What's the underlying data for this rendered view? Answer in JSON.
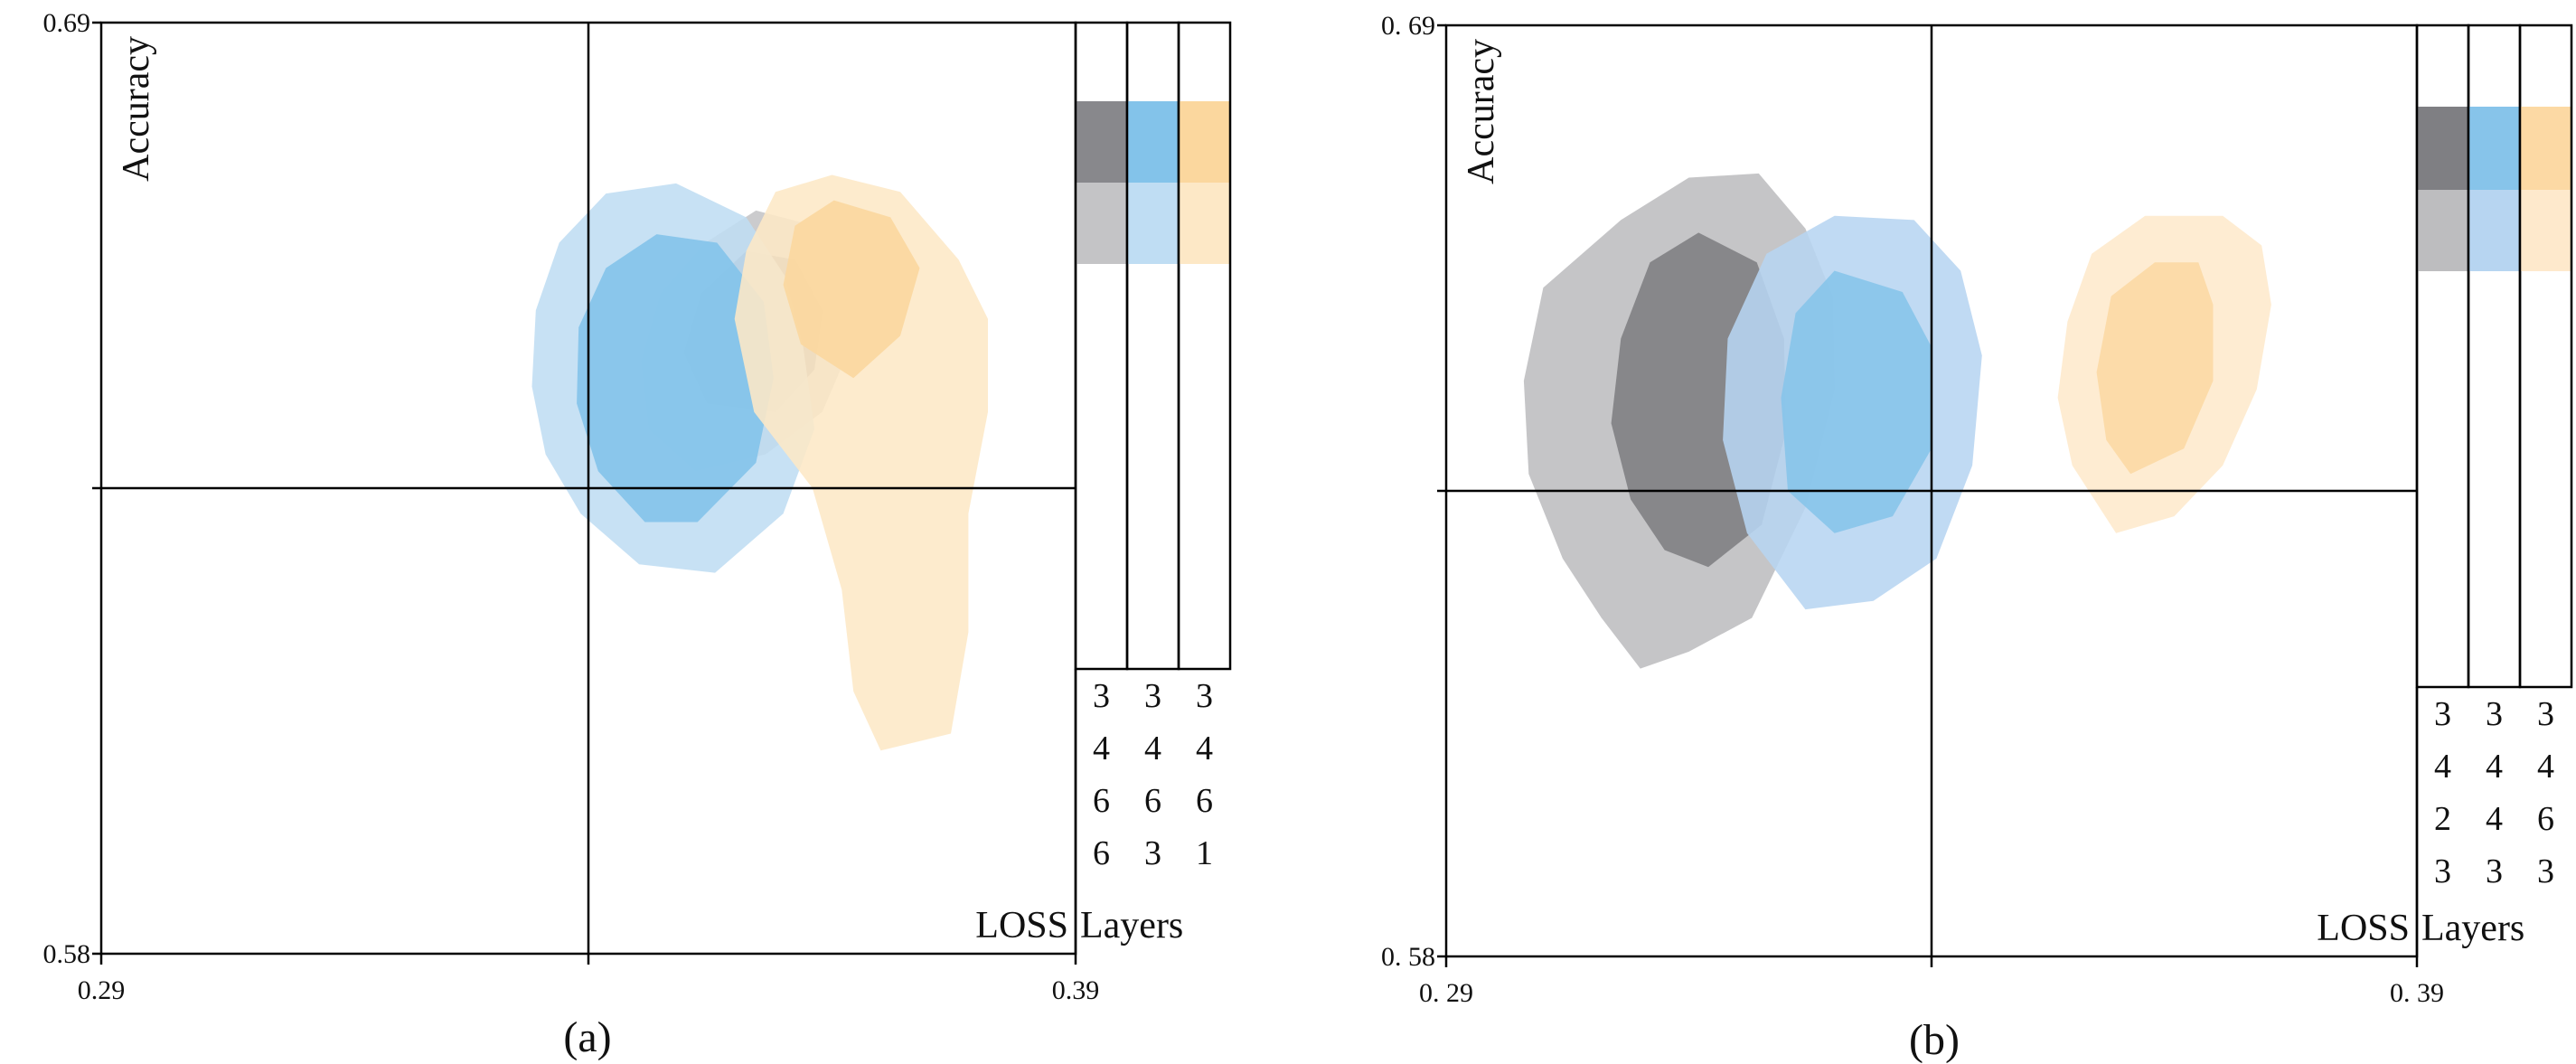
{
  "chart_data": [
    {
      "panel": "a",
      "caption": "(a)",
      "type": "contour",
      "xlabel": "LOSS",
      "ylabel": "Accuracy",
      "xlim": [
        0.29,
        0.39
      ],
      "ylim": [
        0.58,
        0.69
      ],
      "x_tick_labels": [
        "0.29",
        "0.39"
      ],
      "y_tick_labels": [
        "0.58",
        "0.69"
      ],
      "legend_title": "Layers",
      "series": [
        {
          "name": "3466",
          "layers": [
            "3",
            "4",
            "6",
            "6"
          ],
          "dark": "#88888c",
          "light": "#c4c4c6",
          "outer": [
            [
              0.3582,
              0.639
            ],
            [
              0.364,
              0.644
            ],
            [
              0.367,
              0.652
            ],
            [
              0.3668,
              0.66
            ],
            [
              0.3632,
              0.666
            ],
            [
              0.3572,
              0.6678
            ],
            [
              0.352,
              0.664
            ],
            [
              0.3474,
              0.658
            ],
            [
              0.3454,
              0.65
            ],
            [
              0.3462,
              0.642
            ],
            [
              0.351,
              0.637
            ]
          ],
          "inner": [
            [
              0.3592,
              0.644
            ],
            [
              0.3632,
              0.649
            ],
            [
              0.364,
              0.656
            ],
            [
              0.3612,
              0.662
            ],
            [
              0.3562,
              0.663
            ],
            [
              0.3516,
              0.658
            ],
            [
              0.3498,
              0.651
            ],
            [
              0.3522,
              0.645
            ]
          ]
        },
        {
          "name": "3463",
          "layers": [
            "3",
            "4",
            "6",
            "3"
          ],
          "dark": "#83c3ea",
          "light": "#bfddf3",
          "outer": [
            [
              0.353,
              0.625
            ],
            [
              0.36,
              0.632
            ],
            [
              0.3632,
              0.642
            ],
            [
              0.362,
              0.652
            ],
            [
              0.3602,
              0.66
            ],
            [
              0.3562,
              0.667
            ],
            [
              0.349,
              0.671
            ],
            [
              0.3418,
              0.6698
            ],
            [
              0.337,
              0.664
            ],
            [
              0.3346,
              0.656
            ],
            [
              0.3342,
              0.647
            ],
            [
              0.3356,
              0.639
            ],
            [
              0.3392,
              0.632
            ],
            [
              0.3452,
              0.626
            ]
          ],
          "inner": [
            [
              0.3512,
              0.631
            ],
            [
              0.3572,
              0.638
            ],
            [
              0.359,
              0.648
            ],
            [
              0.358,
              0.657
            ],
            [
              0.3532,
              0.664
            ],
            [
              0.347,
              0.665
            ],
            [
              0.3418,
              0.661
            ],
            [
              0.339,
              0.654
            ],
            [
              0.3388,
              0.645
            ],
            [
              0.341,
              0.637
            ],
            [
              0.3458,
              0.631
            ]
          ]
        },
        {
          "name": "3461",
          "layers": [
            "3",
            "4",
            "6",
            "1"
          ],
          "dark": "#fbd79e",
          "light": "#fde8c6",
          "outer": [
            [
              0.37,
              0.604
            ],
            [
              0.3772,
              0.606
            ],
            [
              0.379,
              0.618
            ],
            [
              0.379,
              0.632
            ],
            [
              0.381,
              0.644
            ],
            [
              0.381,
              0.655
            ],
            [
              0.378,
              0.662
            ],
            [
              0.372,
              0.67
            ],
            [
              0.365,
              0.672
            ],
            [
              0.3592,
              0.67
            ],
            [
              0.3562,
              0.663
            ],
            [
              0.355,
              0.655
            ],
            [
              0.357,
              0.644
            ],
            [
              0.363,
              0.635
            ],
            [
              0.366,
              0.623
            ],
            [
              0.3672,
              0.611
            ]
          ],
          "inner": [
            [
              0.3672,
              0.648
            ],
            [
              0.372,
              0.653
            ],
            [
              0.374,
              0.661
            ],
            [
              0.371,
              0.667
            ],
            [
              0.3652,
              0.669
            ],
            [
              0.3612,
              0.666
            ],
            [
              0.36,
              0.659
            ],
            [
              0.3618,
              0.652
            ]
          ]
        }
      ]
    },
    {
      "panel": "b",
      "caption": "(b)",
      "type": "contour",
      "xlabel": "LOSS",
      "ylabel": "Accuracy",
      "xlim": [
        0.29,
        0.39
      ],
      "ylim": [
        0.58,
        0.69
      ],
      "x_tick_labels": [
        "0. 29",
        "0. 39"
      ],
      "y_tick_labels": [
        "0. 58",
        "0. 69"
      ],
      "legend_title": "Layers",
      "series": [
        {
          "name": "3423",
          "layers": [
            "3",
            "4",
            "2",
            "3"
          ],
          "dark": "#7f7f83",
          "light": "#bdbdbf",
          "outer": [
            [
              0.31,
              0.614
            ],
            [
              0.315,
              0.616
            ],
            [
              0.3215,
              0.62
            ],
            [
              0.327,
              0.633
            ],
            [
              0.33,
              0.647
            ],
            [
              0.3298,
              0.658
            ],
            [
              0.327,
              0.666
            ],
            [
              0.3222,
              0.6725
            ],
            [
              0.315,
              0.672
            ],
            [
              0.308,
              0.667
            ],
            [
              0.3,
              0.659
            ],
            [
              0.298,
              0.648
            ],
            [
              0.2985,
              0.637
            ],
            [
              0.302,
              0.627
            ],
            [
              0.306,
              0.62
            ]
          ],
          "inner": [
            [
              0.317,
              0.626
            ],
            [
              0.3225,
              0.631
            ],
            [
              0.325,
              0.642
            ],
            [
              0.3248,
              0.653
            ],
            [
              0.322,
              0.662
            ],
            [
              0.316,
              0.6655
            ],
            [
              0.311,
              0.662
            ],
            [
              0.308,
              0.653
            ],
            [
              0.307,
              0.643
            ],
            [
              0.309,
              0.634
            ],
            [
              0.3125,
              0.628
            ]
          ]
        },
        {
          "name": "3443",
          "layers": [
            "3",
            "4",
            "4",
            "3"
          ],
          "dark": "#87c4ea",
          "light": "#b7d5f1",
          "outer": [
            [
              0.327,
              0.621
            ],
            [
              0.334,
              0.622
            ],
            [
              0.3405,
              0.627
            ],
            [
              0.3442,
              0.638
            ],
            [
              0.3452,
              0.651
            ],
            [
              0.343,
              0.661
            ],
            [
              0.3382,
              0.667
            ],
            [
              0.33,
              0.6675
            ],
            [
              0.323,
              0.663
            ],
            [
              0.319,
              0.653
            ],
            [
              0.3185,
              0.641
            ],
            [
              0.321,
              0.63
            ]
          ],
          "inner": [
            [
              0.33,
              0.63
            ],
            [
              0.336,
              0.632
            ],
            [
              0.34,
              0.64
            ],
            [
              0.34,
              0.652
            ],
            [
              0.337,
              0.6585
            ],
            [
              0.33,
              0.661
            ],
            [
              0.326,
              0.656
            ],
            [
              0.3245,
              0.646
            ],
            [
              0.3252,
              0.635
            ]
          ]
        },
        {
          "name": "3463",
          "layers": [
            "3",
            "4",
            "6",
            "3"
          ],
          "dark": "#fcd9a4",
          "light": "#fee9cc",
          "outer": [
            [
              0.359,
              0.63
            ],
            [
              0.365,
              0.632
            ],
            [
              0.37,
              0.638
            ],
            [
              0.3735,
              0.647
            ],
            [
              0.375,
              0.657
            ],
            [
              0.374,
              0.664
            ],
            [
              0.37,
              0.6675
            ],
            [
              0.362,
              0.6675
            ],
            [
              0.3565,
              0.663
            ],
            [
              0.354,
              0.655
            ],
            [
              0.353,
              0.646
            ],
            [
              0.3545,
              0.638
            ]
          ],
          "inner": [
            [
              0.3605,
              0.637
            ],
            [
              0.366,
              0.64
            ],
            [
              0.369,
              0.648
            ],
            [
              0.369,
              0.657
            ],
            [
              0.3675,
              0.662
            ],
            [
              0.363,
              0.662
            ],
            [
              0.3585,
              0.658
            ],
            [
              0.357,
              0.649
            ],
            [
              0.358,
              0.641
            ]
          ]
        }
      ]
    }
  ]
}
